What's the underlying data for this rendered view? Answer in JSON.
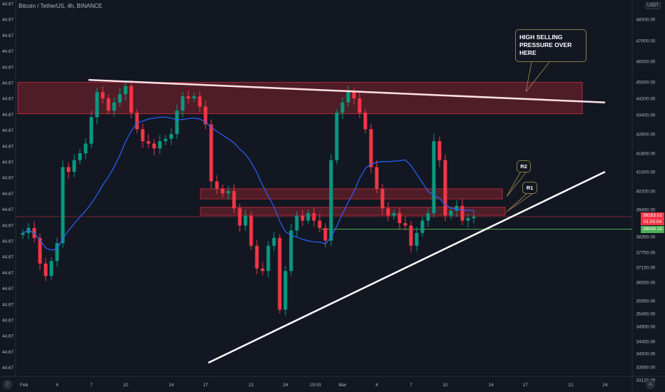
{
  "header": {
    "title": "Bitcoin / TetherUS, 4h, BINANCE",
    "currency_badge": "USDT"
  },
  "colors": {
    "background": "#131722",
    "up": "#089981",
    "down": "#f23645",
    "ma": "#2962ff",
    "zone_fill": "#5b1e29",
    "zone_border": "#b22833",
    "trendline": "#ffffff",
    "support_line": "#4caf50",
    "last_price_line": "#f23645"
  },
  "controls": {
    "left_button": "Z",
    "right_button": "A"
  },
  "chart_data": {
    "type": "candlestick",
    "title": "Bitcoin / TetherUS, 4h, BINANCE",
    "y_scale": "log",
    "right_axis_ticks": [
      "48000.00",
      "47000.00",
      "46000.00",
      "45000.00",
      "44200.00",
      "43400.00",
      "42600.00",
      "41800.00",
      "41000.00",
      "40200.00",
      "39450.00",
      "38350.00",
      "37750.00",
      "37150.00",
      "36550.00",
      "35950.00",
      "35450.00",
      "34950.00",
      "34450.00",
      "34000.00",
      "33560.00",
      "33120.00"
    ],
    "left_axis_ticks": [
      "44.67",
      "44.67",
      "44.67",
      "44.67",
      "44.67",
      "44.67",
      "44.67",
      "44.67",
      "44.67",
      "44.67",
      "44.67",
      "44.67",
      "44.67",
      "44.67",
      "44.67",
      "44.67",
      "44.67",
      "44.67",
      "44.67",
      "44.67",
      "44.67",
      "44.67",
      "44.67",
      "44.67"
    ],
    "x_ticks": [
      {
        "label": "Feb",
        "date": "Feb 1"
      },
      {
        "label": "4",
        "date": "Feb 4"
      },
      {
        "label": "7",
        "date": "Feb 7"
      },
      {
        "label": "10",
        "date": "Feb 10"
      },
      {
        "label": "14",
        "date": "Feb 14"
      },
      {
        "label": "17",
        "date": "Feb 17"
      },
      {
        "label": "21",
        "date": "Feb 21"
      },
      {
        "label": "24",
        "date": "Feb 24"
      },
      {
        "label": "15:00",
        "date": "Feb 26 15:00"
      },
      {
        "label": "Mar",
        "date": "Mar 1"
      },
      {
        "label": "4",
        "date": "Mar 4"
      },
      {
        "label": "7",
        "date": "Mar 7"
      },
      {
        "label": "10",
        "date": "Mar 10"
      },
      {
        "label": "14",
        "date": "Mar 14"
      },
      {
        "label": "17",
        "date": "Mar 17"
      },
      {
        "label": "21",
        "date": "Mar 21"
      },
      {
        "label": "24",
        "date": "Mar 24"
      }
    ],
    "x": [
      "Feb 1",
      "Feb 1 12:00",
      "Feb 2",
      "Feb 2 12:00",
      "Feb 3",
      "Feb 3 12:00",
      "Feb 4",
      "Feb 4 12:00",
      "Feb 5",
      "Feb 5 12:00",
      "Feb 6",
      "Feb 6 12:00",
      "Feb 7",
      "Feb 7 12:00",
      "Feb 8",
      "Feb 8 12:00",
      "Feb 9",
      "Feb 9 12:00",
      "Feb 10",
      "Feb 10 12:00",
      "Feb 11",
      "Feb 11 12:00",
      "Feb 12",
      "Feb 12 12:00",
      "Feb 13",
      "Feb 13 12:00",
      "Feb 14",
      "Feb 14 12:00",
      "Feb 15",
      "Feb 15 12:00",
      "Feb 16",
      "Feb 16 12:00",
      "Feb 17",
      "Feb 17 12:00",
      "Feb 18",
      "Feb 18 12:00",
      "Feb 19",
      "Feb 19 12:00",
      "Feb 20",
      "Feb 20 12:00",
      "Feb 21",
      "Feb 21 12:00",
      "Feb 22",
      "Feb 22 12:00",
      "Feb 23",
      "Feb 23 12:00",
      "Feb 24",
      "Feb 24 12:00",
      "Feb 25",
      "Feb 25 12:00",
      "Feb 26",
      "Feb 26 12:00",
      "Feb 27",
      "Feb 27 12:00",
      "Feb 28",
      "Feb 28 12:00",
      "Mar 1",
      "Mar 1 12:00",
      "Mar 2",
      "Mar 2 12:00",
      "Mar 3",
      "Mar 3 12:00",
      "Mar 4",
      "Mar 4 12:00",
      "Mar 5",
      "Mar 5 12:00",
      "Mar 6",
      "Mar 6 12:00",
      "Mar 7",
      "Mar 7 12:00",
      "Mar 8",
      "Mar 8 12:00",
      "Mar 9",
      "Mar 9 12:00",
      "Mar 10",
      "Mar 10 12:00",
      "Mar 11",
      "Mar 11 12:00",
      "Mar 12",
      "Mar 12 12:00"
    ],
    "close": [
      38500,
      38700,
      38300,
      37300,
      36800,
      37400,
      38100,
      41200,
      41000,
      41500,
      41800,
      42200,
      43300,
      44500,
      44200,
      43600,
      44000,
      44400,
      44800,
      43500,
      42800,
      42300,
      42200,
      42000,
      42300,
      42400,
      42600,
      43600,
      44300,
      44200,
      44300,
      43800,
      43000,
      40600,
      40300,
      40100,
      40200,
      39500,
      38800,
      39200,
      38000,
      37100,
      37000,
      38000,
      38300,
      35600,
      37000,
      38600,
      39200,
      39000,
      39300,
      39000,
      38700,
      38200,
      41500,
      43500,
      44000,
      44500,
      44200,
      43500,
      42800,
      41200,
      40300,
      39500,
      39200,
      39300,
      38900,
      38800,
      38000,
      38500,
      39000,
      39300,
      42300,
      41500,
      39200,
      39400,
      39600,
      39000,
      39100,
      39163.01
    ],
    "indicator": "moving average",
    "last_price": "39163.01",
    "countdown": "01:05:04",
    "support_price": "38649.18",
    "zones": [
      {
        "name": "high selling pressure zone",
        "from": "Feb 1",
        "to": "Mar 22",
        "top": 44980,
        "bottom": 43450
      },
      {
        "name": "R2",
        "from": "Feb 17",
        "to": "Mar 15",
        "top": 40290,
        "bottom": 39880
      },
      {
        "name": "R1",
        "from": "Feb 17",
        "to": "Mar 15 6:00",
        "top": 39540,
        "bottom": 39220
      }
    ],
    "trendlines": [
      {
        "name": "descending resistance",
        "start": {
          "date": "Feb 6 18:00",
          "price": 45100
        },
        "end": {
          "date": "Mar 24",
          "price": 44000
        }
      },
      {
        "name": "ascending support",
        "start": {
          "date": "Feb 17 6:00",
          "price": 33700
        },
        "end": {
          "date": "Mar 24",
          "price": 41000
        }
      }
    ],
    "annotations": [
      {
        "name": "high-selling-callout",
        "text": "HIGH SELLING PRESSURE OVER HERE"
      },
      {
        "name": "r2-callout",
        "text": "R2"
      },
      {
        "name": "r1-callout",
        "text": "R1"
      }
    ]
  }
}
